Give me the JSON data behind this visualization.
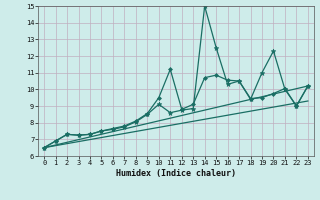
{
  "xlabel": "Humidex (Indice chaleur)",
  "xlim": [
    -0.5,
    23.5
  ],
  "ylim": [
    6,
    15
  ],
  "xticks": [
    0,
    1,
    2,
    3,
    4,
    5,
    6,
    7,
    8,
    9,
    10,
    11,
    12,
    13,
    14,
    15,
    16,
    17,
    18,
    19,
    20,
    21,
    22,
    23
  ],
  "yticks": [
    6,
    7,
    8,
    9,
    10,
    11,
    12,
    13,
    14,
    15
  ],
  "bg_color": "#ceecea",
  "grid_color": "#c0afc0",
  "line_color": "#1a6e64",
  "lines": [
    {
      "x": [
        0,
        1,
        2,
        3,
        4,
        5,
        6,
        7,
        8,
        9,
        10,
        11,
        12,
        13,
        14,
        15,
        16,
        17,
        18,
        19,
        20,
        21,
        22,
        23
      ],
      "y": [
        6.5,
        6.9,
        7.3,
        7.25,
        7.3,
        7.5,
        7.6,
        7.75,
        8.05,
        8.5,
        9.1,
        8.6,
        8.75,
        8.85,
        15.0,
        12.5,
        10.3,
        10.5,
        9.4,
        11.0,
        12.3,
        10.0,
        9.0,
        10.2
      ],
      "marker": "*",
      "markersize": 3.5,
      "linewidth": 0.9
    },
    {
      "x": [
        0,
        1,
        2,
        3,
        4,
        5,
        6,
        7,
        8,
        9,
        10,
        11,
        12,
        13,
        14,
        15,
        16,
        17,
        18,
        19,
        20,
        21,
        22,
        23
      ],
      "y": [
        6.5,
        6.9,
        7.3,
        7.25,
        7.3,
        7.5,
        7.65,
        7.8,
        8.1,
        8.55,
        9.5,
        11.2,
        8.8,
        9.1,
        10.7,
        10.85,
        10.55,
        10.5,
        9.45,
        9.5,
        9.75,
        10.05,
        9.0,
        10.2
      ],
      "marker": "D",
      "markersize": 2.0,
      "linewidth": 0.9
    },
    {
      "x": [
        0,
        23
      ],
      "y": [
        6.5,
        10.2
      ],
      "marker": "None",
      "markersize": 0,
      "linewidth": 0.9
    },
    {
      "x": [
        0,
        23
      ],
      "y": [
        6.5,
        9.3
      ],
      "marker": "None",
      "markersize": 0,
      "linewidth": 0.9
    }
  ]
}
